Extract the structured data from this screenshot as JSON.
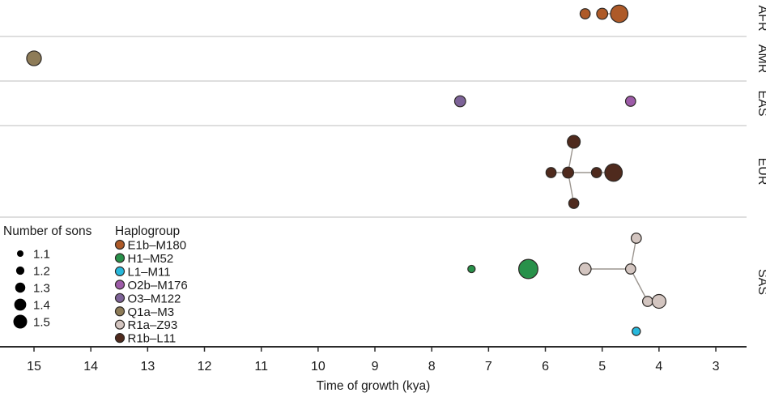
{
  "chart_data": {
    "type": "scatter",
    "xlabel": "Time of growth (kya)",
    "x_ticks": [
      15,
      14,
      13,
      12,
      11,
      10,
      9,
      8,
      7,
      6,
      5,
      4,
      3
    ],
    "x_axis_reversed": true,
    "x_range": [
      15.6,
      2.5
    ],
    "grid": false,
    "facet_labels": [
      "AFR",
      "AMR",
      "EAS",
      "EUR",
      "SAS"
    ],
    "size_legend": {
      "title": "Number of sons",
      "values": [
        1.1,
        1.2,
        1.3,
        1.4,
        1.5
      ]
    },
    "color_legend": {
      "title": "Haplogroup",
      "position": "bottom-left inside plot",
      "items": [
        {
          "label": "E1b–M180",
          "color": "#ae5a28"
        },
        {
          "label": "H1–M52",
          "color": "#28914a"
        },
        {
          "label": "L1–M11",
          "color": "#27b8dc"
        },
        {
          "label": "O2b–M176",
          "color": "#9d5ba8"
        },
        {
          "label": "O3–M122",
          "color": "#7d6398"
        },
        {
          "label": "Q1a–M3",
          "color": "#8e7c58"
        },
        {
          "label": "R1a–Z93",
          "color": "#d3c5c0"
        },
        {
          "label": "R1b–L11",
          "color": "#4f2a1d"
        }
      ]
    },
    "panels": [
      {
        "label": "AFR",
        "points": [
          {
            "haplogroup": "E1b–M180",
            "kya": 5.3,
            "sons": 1.3,
            "dy": 17
          },
          {
            "haplogroup": "E1b–M180",
            "kya": 5.0,
            "sons": 1.35,
            "dy": 17
          },
          {
            "haplogroup": "E1b–M180",
            "kya": 4.7,
            "sons": 1.7,
            "dy": 17
          }
        ],
        "edges": [
          [
            1,
            2
          ]
        ]
      },
      {
        "label": "AMR",
        "points": [
          {
            "haplogroup": "Q1a–M3",
            "kya": 15.0,
            "sons": 1.55,
            "dy": 27
          }
        ],
        "edges": []
      },
      {
        "label": "EAS",
        "points": [
          {
            "haplogroup": "O3–M122",
            "kya": 7.5,
            "sons": 1.35,
            "dy": 25
          },
          {
            "haplogroup": "O2b–M176",
            "kya": 4.5,
            "sons": 1.3,
            "dy": 25
          }
        ],
        "edges": []
      },
      {
        "label": "EUR",
        "points": [
          {
            "haplogroup": "R1b–L11",
            "kya": 5.5,
            "sons": 1.45,
            "dy": 20
          },
          {
            "haplogroup": "R1b–L11",
            "kya": 5.9,
            "sons": 1.3,
            "dy": 58
          },
          {
            "haplogroup": "R1b–L11",
            "kya": 5.6,
            "sons": 1.35,
            "dy": 58
          },
          {
            "haplogroup": "R1b–L11",
            "kya": 5.1,
            "sons": 1.3,
            "dy": 58
          },
          {
            "haplogroup": "R1b–L11",
            "kya": 4.8,
            "sons": 1.7,
            "dy": 58
          },
          {
            "haplogroup": "R1b–L11",
            "kya": 5.5,
            "sons": 1.3,
            "dy": 96
          }
        ],
        "edges": [
          [
            0,
            2
          ],
          [
            1,
            2
          ],
          [
            2,
            3
          ],
          [
            3,
            4
          ],
          [
            2,
            5
          ]
        ]
      },
      {
        "label": "SAS",
        "points": [
          {
            "haplogroup": "H1–M52",
            "kya": 7.3,
            "sons": 1.15,
            "dy": 64
          },
          {
            "haplogroup": "H1–M52",
            "kya": 6.3,
            "sons": 1.8,
            "dy": 64
          },
          {
            "haplogroup": "R1a–Z93",
            "kya": 5.3,
            "sons": 1.4,
            "dy": 64
          },
          {
            "haplogroup": "R1a–Z93",
            "kya": 4.5,
            "sons": 1.3,
            "dy": 64
          },
          {
            "haplogroup": "R1a–Z93",
            "kya": 4.4,
            "sons": 1.3,
            "dy": 26
          },
          {
            "haplogroup": "R1a–Z93",
            "kya": 4.2,
            "sons": 1.3,
            "dy": 104
          },
          {
            "haplogroup": "R1a–Z93",
            "kya": 4.0,
            "sons": 1.5,
            "dy": 104
          },
          {
            "haplogroup": "L1–M11",
            "kya": 4.4,
            "sons": 1.2,
            "dy": 141
          }
        ],
        "edges": [
          [
            2,
            3
          ],
          [
            3,
            4
          ],
          [
            3,
            5
          ],
          [
            5,
            6
          ]
        ]
      }
    ]
  }
}
